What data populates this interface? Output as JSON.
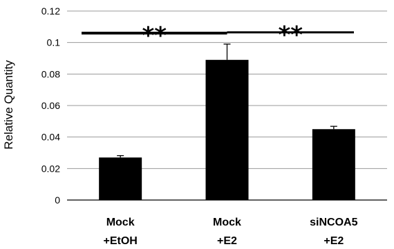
{
  "chart_data": {
    "type": "bar",
    "title": "",
    "xlabel": "",
    "ylabel": "Relative Quantity",
    "ylim": [
      0,
      0.12
    ],
    "yticks": [
      "0",
      "0.02",
      "0.04",
      "0.06",
      "0.08",
      "0.1",
      "0.12"
    ],
    "grid": true,
    "categories": [
      {
        "line1": "Mock",
        "line2": "+EtOH"
      },
      {
        "line1": "Mock",
        "line2": "+E2"
      },
      {
        "line1": "siNCOA5",
        "line2": "+E2"
      }
    ],
    "values": [
      0.027,
      0.089,
      0.045
    ],
    "errors": [
      0.0012,
      0.01,
      0.0018
    ],
    "bar_color": "#000000",
    "significance": [
      {
        "from": 0,
        "to": 1,
        "y": 0.106,
        "label": "**"
      },
      {
        "from": 1,
        "to": 2,
        "y": 0.1065,
        "label": "**"
      }
    ]
  }
}
